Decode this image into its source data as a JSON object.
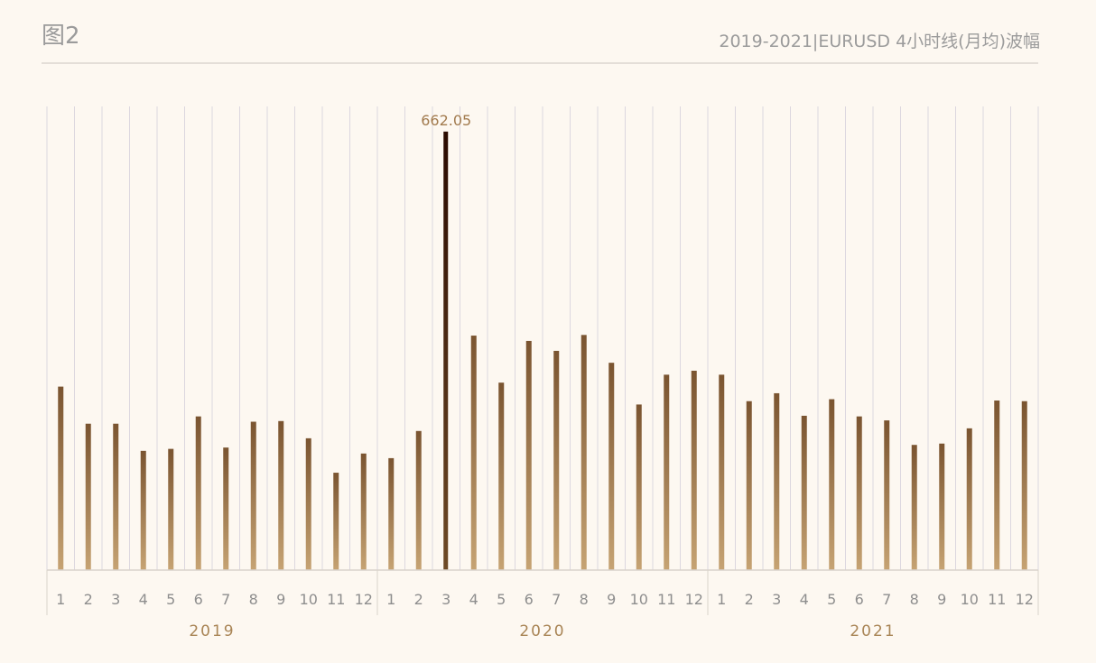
{
  "header": {
    "figure_label": "图2",
    "title": "2019-2021|EURUSD 4小时线(月均)波幅"
  },
  "colors": {
    "background": "#fdf8f1",
    "bar_top": "#7a5430",
    "bar_bottom": "#c6a373",
    "highlight_top": "#2a0a00",
    "highlight_bottom": "#6e4a26",
    "grid": "#dcd7df",
    "label_accent": "#a98556"
  },
  "chart_data": {
    "type": "bar",
    "title": "2019-2021|EURUSD 4小时线(月均)波幅",
    "xlabel": "",
    "ylabel": "",
    "ylim": [
      0,
      700
    ],
    "grid": "vertical",
    "categories": [
      "1",
      "2",
      "3",
      "4",
      "5",
      "6",
      "7",
      "8",
      "9",
      "10",
      "11",
      "12",
      "1",
      "2",
      "3",
      "4",
      "5",
      "6",
      "7",
      "8",
      "9",
      "10",
      "11",
      "12",
      "1",
      "2",
      "3",
      "4",
      "5",
      "6",
      "7",
      "8",
      "9",
      "10",
      "11",
      "12"
    ],
    "groups": [
      {
        "label": "2019",
        "count": 12
      },
      {
        "label": "2020",
        "count": 12
      },
      {
        "label": "2021",
        "count": 12
      }
    ],
    "values": [
      277,
      221,
      221,
      180,
      183,
      232,
      185,
      224,
      225,
      199,
      147,
      176,
      169,
      210,
      662.05,
      354,
      283,
      346,
      331,
      355,
      313,
      250,
      295,
      301,
      295,
      255,
      267,
      233,
      258,
      232,
      226,
      189,
      191,
      214,
      256,
      255
    ],
    "highlight_index": 14,
    "annotations": [
      {
        "index": 14,
        "text": "662.05"
      }
    ]
  }
}
